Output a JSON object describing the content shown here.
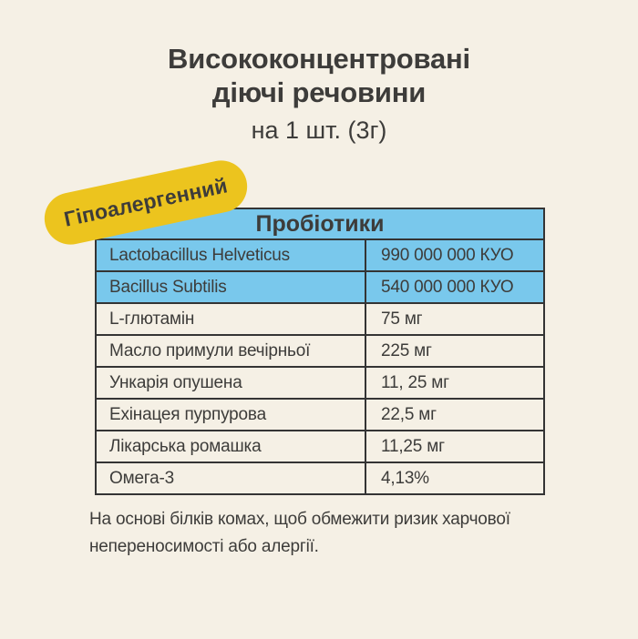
{
  "colors": {
    "background": "#f5f0e5",
    "highlight": "#79c8ec",
    "badge": "#ecc41e",
    "text": "#3d3c3a",
    "border": "#343434"
  },
  "header": {
    "title_line1": "Висококонцентровані",
    "title_line2": "діючі речовини",
    "subtitle": "на 1 шт. (3г)"
  },
  "badge": {
    "label": "Гіпоалергенний"
  },
  "table": {
    "header": "Пробіотики",
    "rows": [
      {
        "name": "Lactobacillus Helveticus",
        "value": "990 000 000 КУО",
        "highlighted": true
      },
      {
        "name": "Bacillus Subtilis",
        "value": "540 000 000 КУО",
        "highlighted": true
      },
      {
        "name": "L-глютамін",
        "value": "75 мг",
        "highlighted": false
      },
      {
        "name": "Масло примули вечірньої",
        "value": "225 мг",
        "highlighted": false
      },
      {
        "name": "Ункарія опушена",
        "value": "11, 25 мг",
        "highlighted": false
      },
      {
        "name": "Ехінацея пурпурова",
        "value": "22,5 мг",
        "highlighted": false
      },
      {
        "name": "Лікарська ромашка",
        "value": "11,25 мг",
        "highlighted": false
      },
      {
        "name": "Омега-3",
        "value": "4,13%",
        "highlighted": false
      }
    ]
  },
  "footer": {
    "note": "На основі білків комах, щоб обмежити ризик харчової непереносимості або алергії."
  }
}
